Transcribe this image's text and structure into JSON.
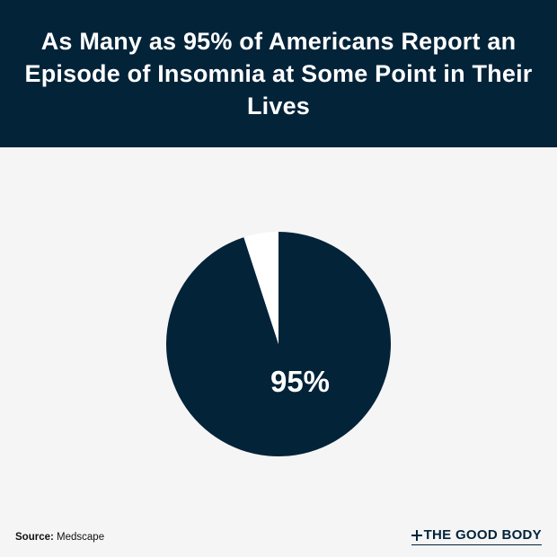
{
  "colors": {
    "primary": "#032339",
    "background": "#f5f5f6",
    "slice_other": "#ffffff"
  },
  "chart_data": {
    "type": "pie",
    "title": "As Many as 95% of Americans Report an Episode of Insomnia at Some Point in Their Lives",
    "slices": [
      {
        "value": 95,
        "label": "95%",
        "color": "#032339"
      },
      {
        "value": 5,
        "label": "",
        "color": "#ffffff"
      }
    ],
    "start": "top",
    "direction": "clockwise"
  },
  "footer": {
    "source_key": "Source:",
    "source_value": "Medscape",
    "brand": "THE GOOD BODY",
    "brand_icon": "plus-icon"
  }
}
